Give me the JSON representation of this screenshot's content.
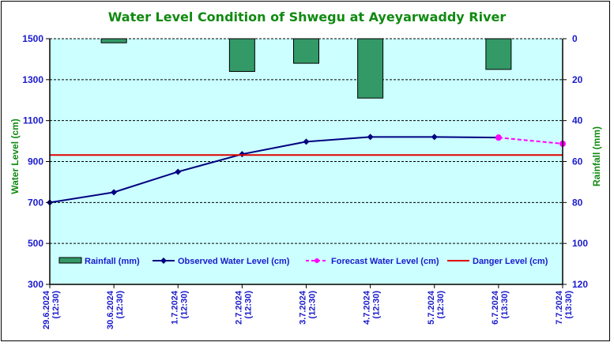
{
  "chart_data": {
    "type": "line",
    "title": "Water Level Condition of Shwegu at Ayeyarwaddy River",
    "xlabel": "",
    "ylabel": "Water Level (cm)",
    "y2label": "Rainfall (mm)",
    "categories": [
      "29.6.2024\n(12:30)",
      "30.6.2024\n(12:30)",
      "1.7.2024\n(12:30)",
      "2.7.2024\n(12:30)",
      "3.7.2024\n(12:30)",
      "4.7.2024\n(12:30)",
      "5.7.2024\n(12:30)",
      "6.7.2024\n(13:30)",
      "7.7.2024\n(13:30)"
    ],
    "category_dates": [
      "29.6.2024",
      "30.6.2024",
      "1.7.2024",
      "2.7.2024",
      "3.7.2024",
      "4.7.2024",
      "5.7.2024",
      "6.7.2024",
      "7.7.2024"
    ],
    "category_times": [
      "(12:30)",
      "(12:30)",
      "(12:30)",
      "(12:30)",
      "(12:30)",
      "(12:30)",
      "(12:30)",
      "(13:30)",
      "(13:30)"
    ],
    "ylim": [
      300,
      1500
    ],
    "yticks": [
      300,
      500,
      700,
      900,
      1100,
      1300,
      1500
    ],
    "y2lim": [
      0,
      120
    ],
    "y2ticks": [
      0,
      20,
      40,
      60,
      80,
      100,
      120
    ],
    "y2_inverted": true,
    "grid": true,
    "legend_position": "bottom-inside",
    "series": [
      {
        "name": "Rainfall (mm)",
        "type": "bar",
        "axis": "y2",
        "color": "#339966",
        "values": [
          0,
          2,
          0,
          16,
          12,
          29,
          0,
          15,
          null
        ]
      },
      {
        "name": "Observed Water Level (cm)",
        "type": "line",
        "axis": "y",
        "color": "#000080",
        "marker": "diamond",
        "values": [
          700,
          750,
          850,
          936,
          997,
          1020,
          1020,
          1017,
          null
        ]
      },
      {
        "name": "Forecast Water Level (cm)",
        "type": "line",
        "axis": "y",
        "color": "#ff00ff",
        "dashed": true,
        "marker": "circle",
        "values": [
          null,
          null,
          null,
          null,
          null,
          null,
          null,
          1017,
          987
        ]
      },
      {
        "name": "Danger Level (cm)",
        "type": "line",
        "axis": "y",
        "color": "#e00000",
        "values": [
          932,
          932,
          932,
          932,
          932,
          932,
          932,
          932,
          932
        ]
      }
    ]
  }
}
